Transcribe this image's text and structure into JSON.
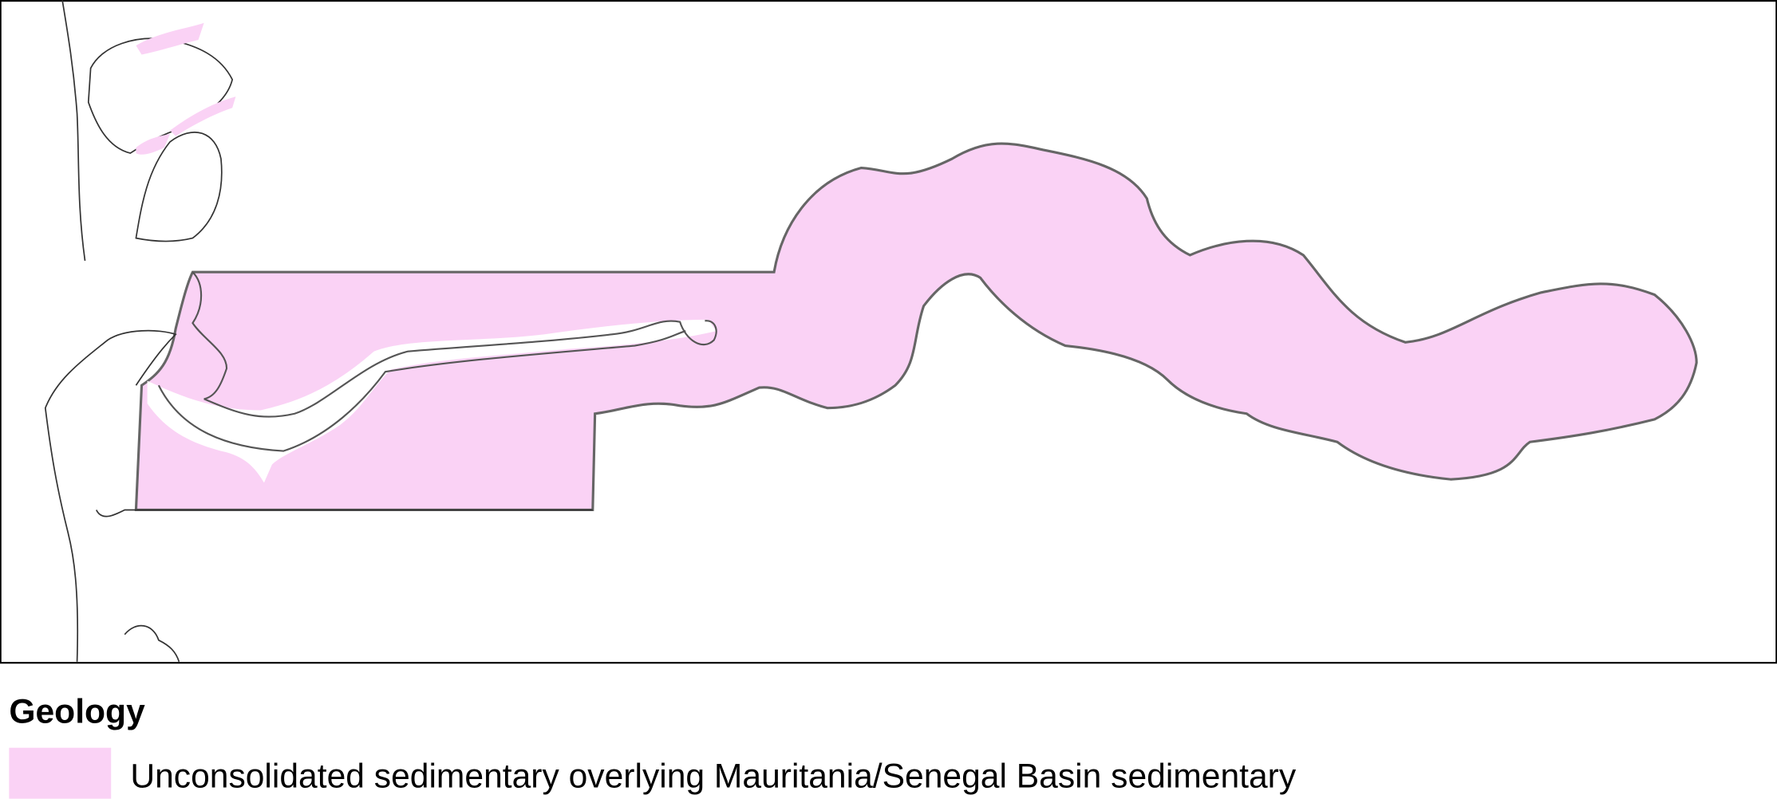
{
  "legend": {
    "title": "Geology",
    "items": [
      {
        "label": "Unconsolidated sedimentary overlying Mauritania/Senegal Basin sedimentary",
        "color": "#fad2f5"
      }
    ]
  }
}
